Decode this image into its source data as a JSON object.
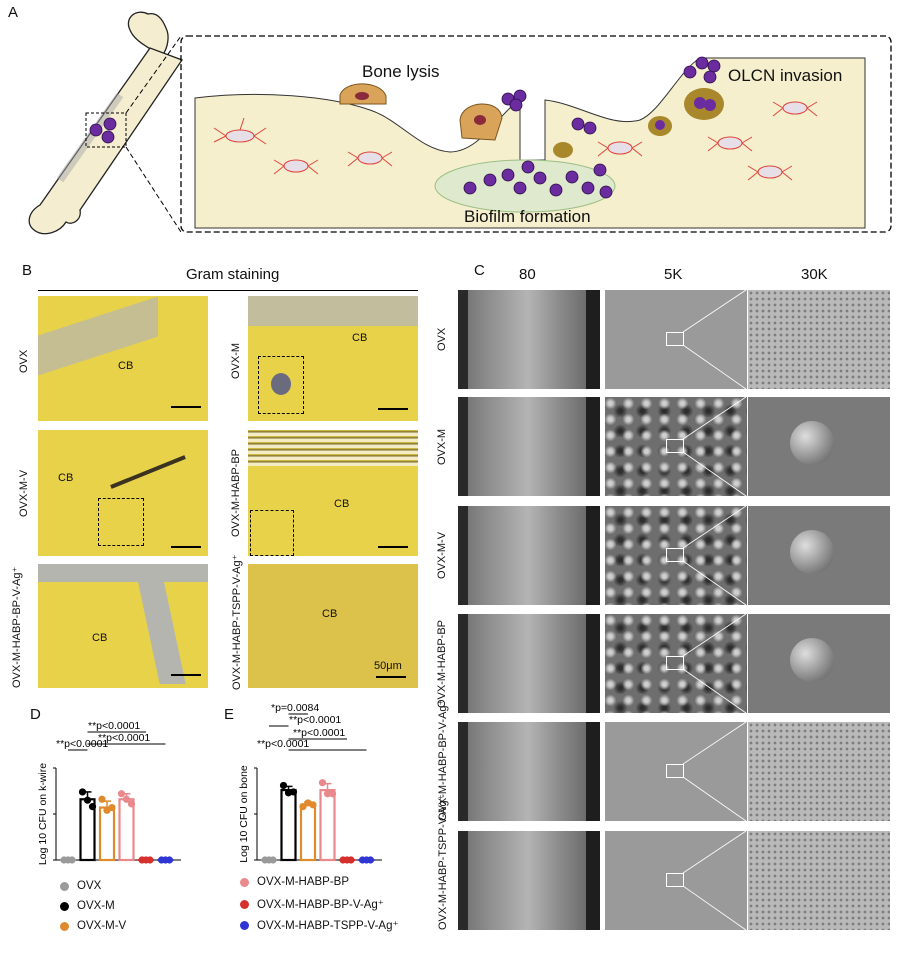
{
  "panel_labels": [
    "A",
    "B",
    "C",
    "D",
    "E"
  ],
  "panelA": {
    "bone_lysis": "Bone lysis",
    "olcn_invasion": "OLCN invasion",
    "biofilm_formation": "Biofilm formation"
  },
  "panelB": {
    "title": "Gram staining",
    "cb_label": "CB",
    "scale_label": "50μm",
    "rows": [
      {
        "left": "OVX",
        "right": "OVX-M"
      },
      {
        "left": "OVX-M-V",
        "right": "OVX-M-HABP-BP"
      },
      {
        "left": "OVX-M-HABP-BP-V-Ag⁺",
        "right": "OVX-M-HABP-TSPP-V-Ag⁺"
      }
    ]
  },
  "panelC": {
    "col_headers": [
      "80",
      "5K",
      "30K"
    ],
    "row_labels": [
      "OVX",
      "OVX-M",
      "OVX-M-V",
      "OVX-M-HABP-BP",
      "OVX-M-HABP-BP-V-Ag⁺",
      "OVX-M-HABP-TSPP-V-Ag⁺"
    ]
  },
  "chart_data": [
    {
      "type": "bar",
      "panel": "D",
      "ylabel": "Log 10 CFU on k-wire",
      "categories": [
        "OVX",
        "OVX-M",
        "OVX-M-V",
        "OVX-M-HABP-BP",
        "OVX-M-HABP-BP-V-Ag⁺",
        "OVX-M-HABP-TSPP-V-Ag⁺"
      ],
      "values": [
        0,
        6.6,
        5.7,
        6.6,
        0,
        0
      ],
      "errors": [
        0,
        0.8,
        0.7,
        0.6,
        0,
        0
      ],
      "points": [
        [
          0,
          0,
          0
        ],
        [
          7.4,
          6.5,
          5.8
        ],
        [
          6.6,
          5.4,
          5.7
        ],
        [
          7.2,
          6.6,
          6.1
        ],
        [
          0,
          0,
          0
        ],
        [
          0,
          0,
          0
        ]
      ],
      "colors": [
        "#9a9a9a",
        "#000000",
        "#e08a2e",
        "#e9898b",
        "#d6302d",
        "#2f36d4"
      ],
      "significance": [
        {
          "text": "**p<0.0001",
          "from": 0,
          "to": 1
        },
        {
          "text": "**p<0.0001",
          "from": 1,
          "to": 4
        },
        {
          "text": "**p<0.0001",
          "from": 1,
          "to": 5
        }
      ]
    },
    {
      "type": "bar",
      "panel": "E",
      "ylabel": "Log 10 CFU on bone",
      "categories": [
        "OVX",
        "OVX-M",
        "OVX-M-V",
        "OVX-M-HABP-BP",
        "OVX-M-HABP-BP-V-Ag⁺",
        "OVX-M-HABP-TSPP-V-Ag⁺"
      ],
      "values": [
        0,
        7.6,
        6.0,
        7.6,
        0,
        0
      ],
      "errors": [
        0,
        0.4,
        0.3,
        0.7,
        0,
        0
      ],
      "points": [
        [
          0,
          0,
          0
        ],
        [
          8.1,
          7.3,
          7.4
        ],
        [
          5.8,
          6.2,
          6.0
        ],
        [
          8.4,
          7.2,
          7.2
        ],
        [
          0,
          0,
          0
        ],
        [
          0,
          0,
          0
        ]
      ],
      "colors": [
        "#9a9a9a",
        "#000000",
        "#e08a2e",
        "#e9898b",
        "#d6302d",
        "#2f36d4"
      ],
      "significance": [
        {
          "text": "*p=0.0084",
          "from": 1,
          "to": 2
        },
        {
          "text": "**p<0.0001",
          "from": 0,
          "to": 1
        },
        {
          "text": "**p<0.0001",
          "from": 1,
          "to": 4
        },
        {
          "text": "**p<0.0001",
          "from": 1,
          "to": 5
        }
      ]
    }
  ],
  "legend": [
    {
      "label": "OVX",
      "color": "#9a9a9a"
    },
    {
      "label": "OVX-M",
      "color": "#000000"
    },
    {
      "label": "OVX-M-V",
      "color": "#e08a2e"
    },
    {
      "label": "OVX-M-HABP-BP",
      "color": "#e9898b"
    },
    {
      "label": "OVX-M-HABP-BP-V-Ag⁺",
      "color": "#d6302d"
    },
    {
      "label": "OVX-M-HABP-TSPP-V-Ag⁺",
      "color": "#2f36d4"
    }
  ]
}
